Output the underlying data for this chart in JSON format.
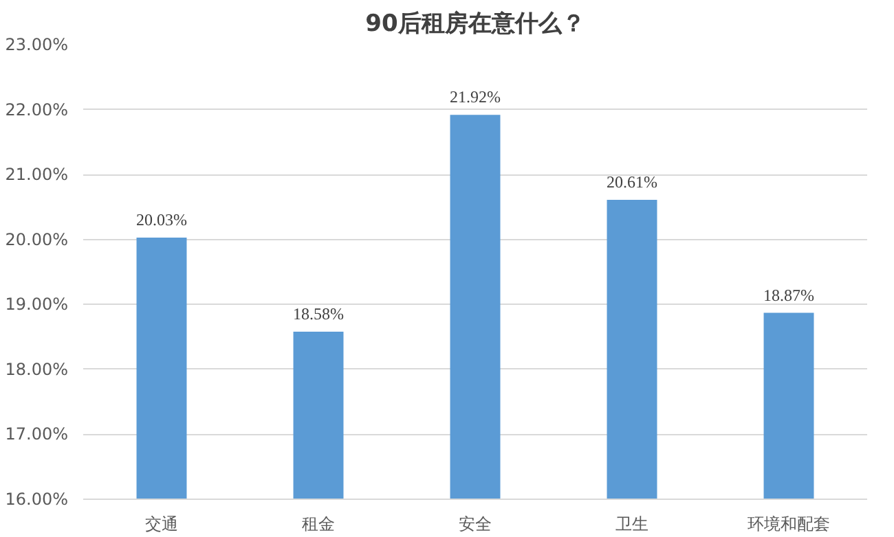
{
  "chart_data": {
    "type": "bar",
    "title": "90后租房在意什么？",
    "categories": [
      "交通",
      "租金",
      "安全",
      "卫生",
      "环境和配套"
    ],
    "values": [
      20.03,
      18.58,
      21.92,
      20.61,
      18.87
    ],
    "value_labels": [
      "20.03%",
      "18.58%",
      "21.92%",
      "20.61%",
      "18.87%"
    ],
    "color": "#5b9bd5",
    "ylim": [
      16,
      23
    ],
    "yticks": [
      {
        "value": 16,
        "label": "16.00%"
      },
      {
        "value": 17,
        "label": "17.00%"
      },
      {
        "value": 18,
        "label": "18.00%"
      },
      {
        "value": 19,
        "label": "19.00%"
      },
      {
        "value": 20,
        "label": "20.00%"
      },
      {
        "value": 21,
        "label": "21.00%"
      },
      {
        "value": 22,
        "label": "22.00%"
      },
      {
        "value": 23,
        "label": "23.00%"
      }
    ],
    "grid": "y"
  }
}
